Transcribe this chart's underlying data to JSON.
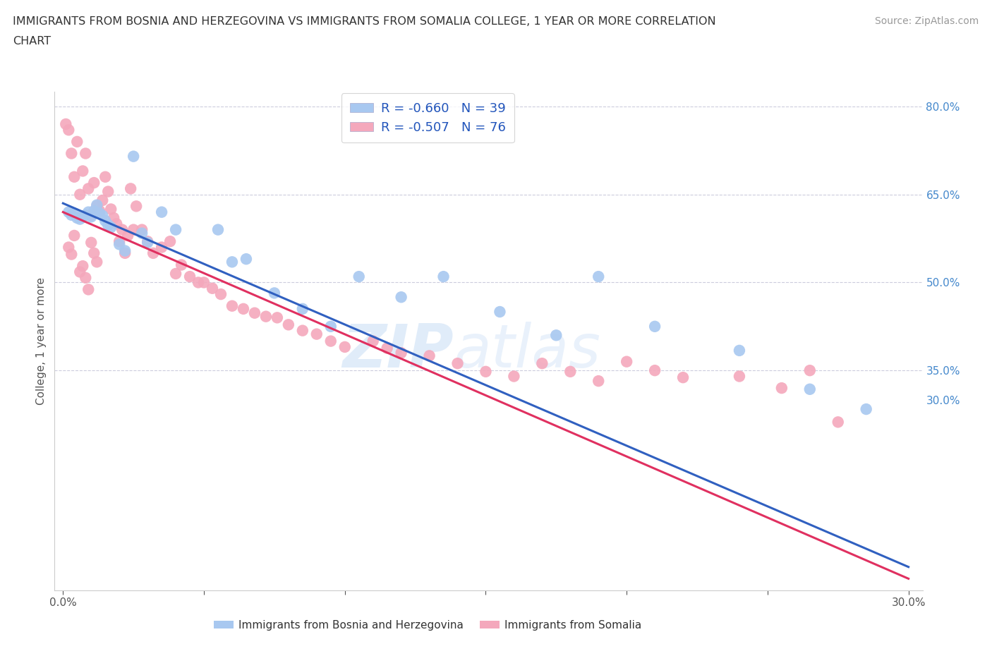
{
  "title_line1": "IMMIGRANTS FROM BOSNIA AND HERZEGOVINA VS IMMIGRANTS FROM SOMALIA COLLEGE, 1 YEAR OR MORE CORRELATION",
  "title_line2": "CHART",
  "source_text": "Source: ZipAtlas.com",
  "ylabel": "College, 1 year or more",
  "bosnia_color": "#a8c8f0",
  "somalia_color": "#f4a8bc",
  "bosnia_line_color": "#3060c0",
  "somalia_line_color": "#e03060",
  "watermark_zip": "ZIP",
  "watermark_atlas": "atlas",
  "bosnia_scatter_x": [
    0.002,
    0.003,
    0.004,
    0.005,
    0.006,
    0.007,
    0.008,
    0.009,
    0.01,
    0.011,
    0.012,
    0.013,
    0.014,
    0.015,
    0.016,
    0.017,
    0.02,
    0.022,
    0.025,
    0.028,
    0.03,
    0.035,
    0.04,
    0.055,
    0.06,
    0.065,
    0.075,
    0.085,
    0.095,
    0.105,
    0.12,
    0.135,
    0.155,
    0.175,
    0.19,
    0.21,
    0.24,
    0.265,
    0.285
  ],
  "bosnia_scatter_y": [
    0.62,
    0.615,
    0.618,
    0.61,
    0.608,
    0.612,
    0.615,
    0.62,
    0.612,
    0.622,
    0.632,
    0.618,
    0.614,
    0.605,
    0.598,
    0.594,
    0.565,
    0.554,
    0.715,
    0.584,
    0.568,
    0.62,
    0.59,
    0.59,
    0.535,
    0.54,
    0.482,
    0.455,
    0.425,
    0.51,
    0.475,
    0.51,
    0.45,
    0.41,
    0.51,
    0.425,
    0.384,
    0.318,
    0.284
  ],
  "somalia_scatter_x": [
    0.001,
    0.002,
    0.003,
    0.004,
    0.005,
    0.006,
    0.007,
    0.008,
    0.009,
    0.01,
    0.011,
    0.012,
    0.013,
    0.014,
    0.015,
    0.016,
    0.017,
    0.018,
    0.019,
    0.02,
    0.021,
    0.022,
    0.023,
    0.024,
    0.025,
    0.026,
    0.028,
    0.03,
    0.032,
    0.035,
    0.038,
    0.04,
    0.042,
    0.045,
    0.048,
    0.05,
    0.053,
    0.056,
    0.06,
    0.064,
    0.068,
    0.072,
    0.076,
    0.08,
    0.085,
    0.09,
    0.095,
    0.1,
    0.11,
    0.115,
    0.12,
    0.13,
    0.14,
    0.15,
    0.16,
    0.17,
    0.18,
    0.19,
    0.2,
    0.21,
    0.22,
    0.24,
    0.255,
    0.265,
    0.275,
    0.002,
    0.003,
    0.004,
    0.006,
    0.007,
    0.008,
    0.009,
    0.01,
    0.011,
    0.012
  ],
  "somalia_scatter_y": [
    0.77,
    0.76,
    0.72,
    0.68,
    0.74,
    0.65,
    0.69,
    0.72,
    0.66,
    0.615,
    0.67,
    0.63,
    0.622,
    0.64,
    0.68,
    0.655,
    0.625,
    0.61,
    0.6,
    0.57,
    0.59,
    0.55,
    0.58,
    0.66,
    0.59,
    0.63,
    0.59,
    0.57,
    0.55,
    0.56,
    0.57,
    0.515,
    0.53,
    0.51,
    0.5,
    0.5,
    0.49,
    0.48,
    0.46,
    0.455,
    0.448,
    0.442,
    0.44,
    0.428,
    0.418,
    0.412,
    0.4,
    0.39,
    0.4,
    0.388,
    0.38,
    0.375,
    0.362,
    0.348,
    0.34,
    0.362,
    0.348,
    0.332,
    0.365,
    0.35,
    0.338,
    0.34,
    0.32,
    0.35,
    0.262,
    0.56,
    0.548,
    0.58,
    0.518,
    0.528,
    0.508,
    0.488,
    0.568,
    0.55,
    0.535
  ],
  "bosnia_line_x0": 0.0,
  "bosnia_line_y0": 0.635,
  "bosnia_line_x1": 0.3,
  "bosnia_line_y1": 0.015,
  "somalia_line_x0": 0.0,
  "somalia_line_y0": 0.62,
  "somalia_line_x1": 0.3,
  "somalia_line_y1": -0.005,
  "xlim_min": -0.003,
  "xlim_max": 0.305,
  "ylim_min": -0.025,
  "ylim_max": 0.825,
  "grid_levels": [
    0.35,
    0.5,
    0.65,
    0.8
  ],
  "right_ytick_values": [
    0.3,
    0.35,
    0.5,
    0.65,
    0.8
  ],
  "right_ytick_labels": [
    "30.0%",
    "35.0%",
    "50.0%",
    "65.0%",
    "80.0%"
  ]
}
